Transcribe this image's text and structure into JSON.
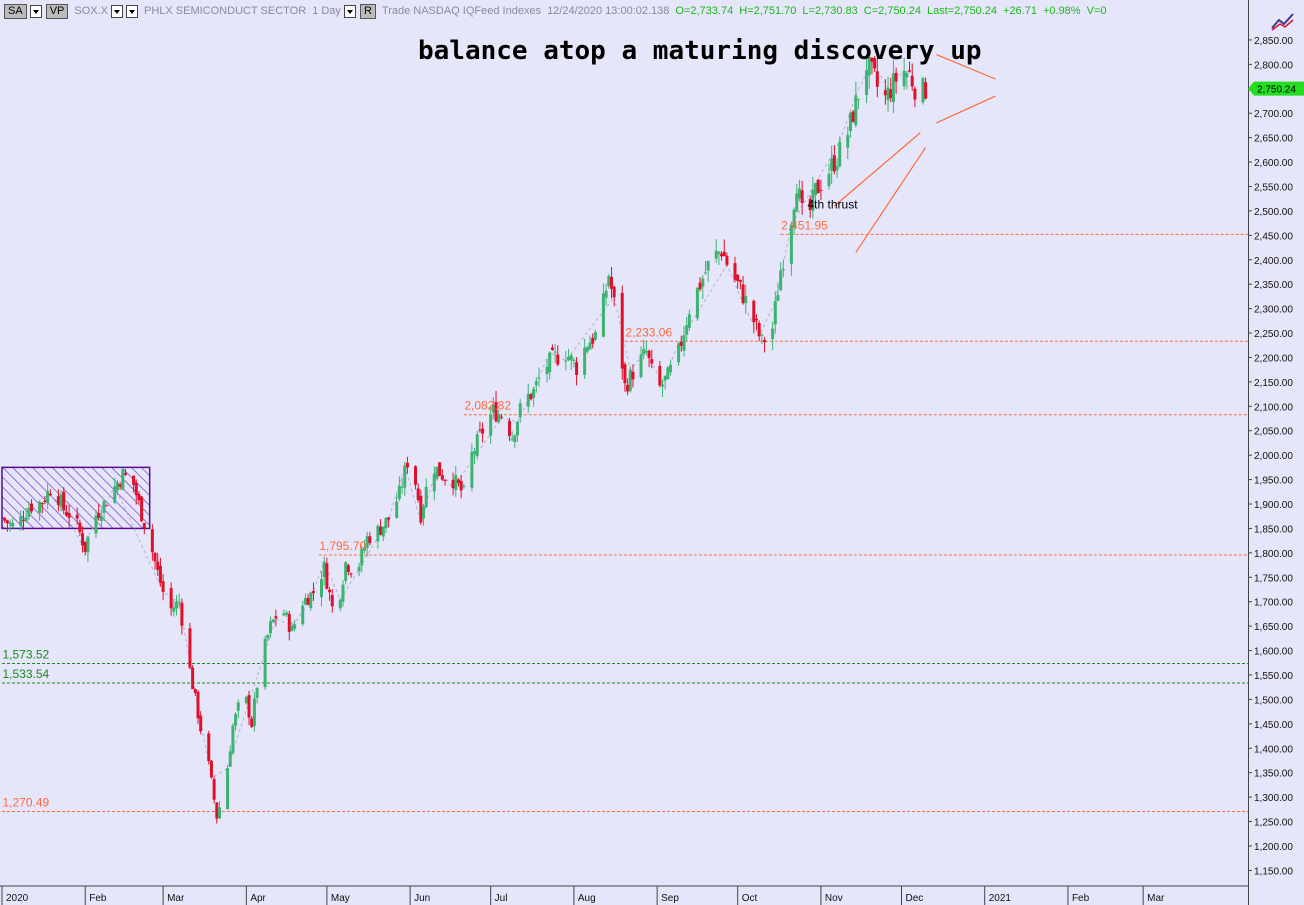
{
  "toolbar": {
    "sa_label": "SA",
    "vp_label": "VP",
    "symbol": "SOX.X",
    "name": "PHLX SEMICONDUCT SECTOR",
    "interval": "1 Day",
    "r_label": "R",
    "feed_text": "Trade  NASDAQ  IQFeed  Indexes",
    "datetime": "12/24/2020   13:00:02.138",
    "open": "O=2,733.74",
    "high": "H=2,751.70",
    "low": "L=2,730.83",
    "close": "C=2,750.24",
    "last": "Last=2,750.24",
    "change": "+26.71",
    "change_pct": "+0.98%",
    "volume": "V=0"
  },
  "colors": {
    "background": "#e6e6fa",
    "up_candle": "#3cb371",
    "down_candle": "#e0102a",
    "level_line": "#ff6a3d",
    "support_line": "#1a8a1a",
    "last_price_tag": "#22dd22",
    "box_border": "#5a0c8c",
    "box_hatch": "#7a3cc8"
  },
  "chart_data": {
    "type": "candlestick",
    "title": "balance atop a maturing discovery up",
    "y_axis": {
      "position": "right",
      "min": 1150,
      "max": 2900,
      "tick_step": 50,
      "tick_labels": [
        "1,150.00",
        "1,200.00",
        "1,250.00",
        "1,300.00",
        "1,350.00",
        "1,400.00",
        "1,450.00",
        "1,500.00",
        "1,550.00",
        "1,600.00",
        "1,650.00",
        "1,700.00",
        "1,750.00",
        "1,800.00",
        "1,850.00",
        "1,900.00",
        "1,950.00",
        "2,000.00",
        "2,050.00",
        "2,100.00",
        "2,150.00",
        "2,200.00",
        "2,250.00",
        "2,300.00",
        "2,350.00",
        "2,400.00",
        "2,450.00",
        "2,500.00",
        "2,550.00",
        "2,600.00",
        "2,650.00",
        "2,700.00",
        "2,750.00",
        "2,800.00",
        "2,850.00"
      ]
    },
    "x_axis": {
      "labels": [
        "2020",
        "Feb",
        "Mar",
        "Apr",
        "May",
        "Jun",
        "Jul",
        "Aug",
        "Sep",
        "Oct",
        "Nov",
        "Dec",
        "2021",
        "Feb",
        "Mar"
      ],
      "label_positions_days": [
        0,
        31,
        60,
        91,
        121,
        152,
        182,
        213,
        244,
        274,
        305,
        335,
        366,
        397,
        425
      ]
    },
    "last_price": "2,750.24",
    "levels": [
      {
        "label": "2,451.95",
        "value": 2451.95,
        "style": "dashed",
        "color": "orange",
        "from_day": 290
      },
      {
        "label": "2,233.06",
        "value": 2233.06,
        "style": "dashed",
        "color": "orange",
        "from_day": 232
      },
      {
        "label": "2,082.82",
        "value": 2082.82,
        "style": "dashed",
        "color": "orange",
        "from_day": 172
      },
      {
        "label": "1,795.70",
        "value": 1795.7,
        "style": "dashed",
        "color": "orange",
        "from_day": 118
      },
      {
        "label": "1,573.52",
        "value": 1573.52,
        "style": "dashed",
        "color": "green",
        "from_day": 0
      },
      {
        "label": "1,533.54",
        "value": 1533.54,
        "style": "dashed",
        "color": "green",
        "from_day": 0
      },
      {
        "label": "1,270.49",
        "value": 1270.49,
        "style": "dashed",
        "color": "orange",
        "from_day": 0
      }
    ],
    "annotations": [
      {
        "text": "4th thrust",
        "day": 300,
        "value": 2505
      }
    ],
    "price_path": [
      [
        0,
        1870
      ],
      [
        5,
        1852
      ],
      [
        10,
        1895
      ],
      [
        15,
        1905
      ],
      [
        19,
        1940
      ],
      [
        23,
        1890
      ],
      [
        27,
        1870
      ],
      [
        31,
        1810
      ],
      [
        34,
        1870
      ],
      [
        38,
        1900
      ],
      [
        42,
        1935
      ],
      [
        45,
        1960
      ],
      [
        49,
        1940
      ],
      [
        52,
        1880
      ],
      [
        55,
        1825
      ],
      [
        58,
        1760
      ],
      [
        62,
        1680
      ],
      [
        66,
        1700
      ],
      [
        70,
        1560
      ],
      [
        74,
        1440
      ],
      [
        77,
        1365
      ],
      [
        80,
        1260
      ],
      [
        83,
        1320
      ],
      [
        86,
        1445
      ],
      [
        90,
        1520
      ],
      [
        93,
        1450
      ],
      [
        96,
        1570
      ],
      [
        100,
        1650
      ],
      [
        104,
        1690
      ],
      [
        108,
        1640
      ],
      [
        112,
        1700
      ],
      [
        116,
        1720
      ],
      [
        120,
        1770
      ],
      [
        124,
        1660
      ],
      [
        128,
        1780
      ],
      [
        132,
        1760
      ],
      [
        136,
        1830
      ],
      [
        140,
        1845
      ],
      [
        144,
        1870
      ],
      [
        148,
        1920
      ],
      [
        152,
        2010
      ],
      [
        156,
        1880
      ],
      [
        160,
        1980
      ],
      [
        164,
        1960
      ],
      [
        168,
        1950
      ],
      [
        172,
        1920
      ],
      [
        175,
        2000
      ],
      [
        179,
        2050
      ],
      [
        183,
        2090
      ],
      [
        187,
        2080
      ],
      [
        190,
        2040
      ],
      [
        194,
        2110
      ],
      [
        198,
        2130
      ],
      [
        202,
        2180
      ],
      [
        206,
        2200
      ],
      [
        210,
        2210
      ],
      [
        214,
        2180
      ],
      [
        218,
        2230
      ],
      [
        222,
        2250
      ],
      [
        226,
        2370
      ],
      [
        229,
        2280
      ],
      [
        232,
        2140
      ],
      [
        236,
        2180
      ],
      [
        240,
        2210
      ],
      [
        244,
        2130
      ],
      [
        248,
        2160
      ],
      [
        252,
        2210
      ],
      [
        256,
        2300
      ],
      [
        260,
        2350
      ],
      [
        264,
        2400
      ],
      [
        268,
        2420
      ],
      [
        271,
        2380
      ],
      [
        275,
        2340
      ],
      [
        279,
        2290
      ],
      [
        283,
        2230
      ],
      [
        287,
        2260
      ],
      [
        290,
        2380
      ],
      [
        293,
        2450
      ],
      [
        296,
        2560
      ],
      [
        299,
        2460
      ],
      [
        303,
        2540
      ],
      [
        307,
        2575
      ],
      [
        311,
        2610
      ],
      [
        315,
        2660
      ],
      [
        318,
        2720
      ],
      [
        322,
        2800
      ],
      [
        325,
        2770
      ],
      [
        328,
        2720
      ],
      [
        332,
        2760
      ],
      [
        335,
        2790
      ],
      [
        338,
        2780
      ],
      [
        341,
        2740
      ],
      [
        344,
        2750
      ]
    ],
    "box": {
      "from_day": 0,
      "to_day": 55,
      "low": 1850,
      "high": 1975,
      "pattern": "hatched"
    },
    "wedge": {
      "upper": [
        [
          310,
          2510
        ],
        [
          342,
          2660
        ]
      ],
      "lower": [
        [
          318,
          2415
        ],
        [
          344,
          2630
        ]
      ]
    },
    "triangle": {
      "upper": [
        [
          348,
          2820
        ],
        [
          370,
          2770
        ]
      ],
      "lower": [
        [
          348,
          2680
        ],
        [
          370,
          2735
        ]
      ]
    }
  }
}
